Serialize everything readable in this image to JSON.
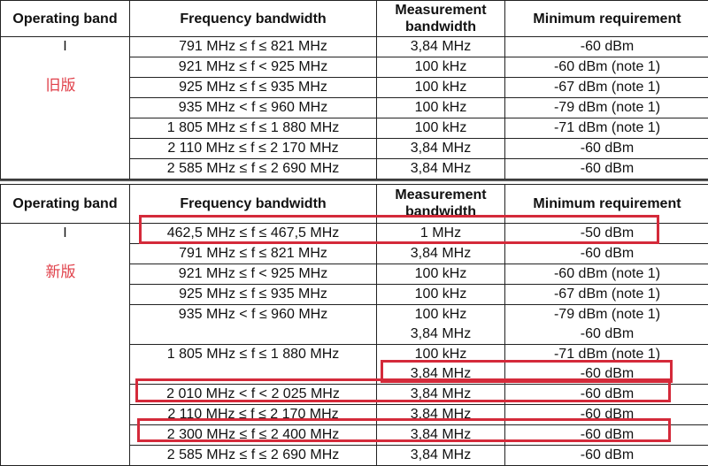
{
  "headers": [
    "Operating band",
    "Frequency bandwidth",
    "Measurement bandwidth",
    "Minimum requirement"
  ],
  "highlight_color": "#d42a3a",
  "old_table": {
    "band": "I",
    "label": "旧版",
    "rows": [
      {
        "freq": "791 MHz ≤ f ≤ 821 MHz",
        "mbw": [
          "3,84 MHz"
        ],
        "req": [
          "-60 dBm"
        ]
      },
      {
        "freq": "921 MHz ≤ f < 925 MHz",
        "mbw": [
          "100 kHz"
        ],
        "req": [
          "-60 dBm (note 1)"
        ]
      },
      {
        "freq": "925 MHz ≤ f ≤ 935 MHz",
        "mbw": [
          "100 kHz"
        ],
        "req": [
          "-67 dBm (note 1)"
        ]
      },
      {
        "freq": "935 MHz < f ≤ 960 MHz",
        "mbw": [
          "100 kHz"
        ],
        "req": [
          "-79 dBm (note 1)"
        ]
      },
      {
        "freq": "1 805 MHz ≤ f ≤ 1 880 MHz",
        "mbw": [
          "100 kHz"
        ],
        "req": [
          "-71 dBm (note 1)"
        ]
      },
      {
        "freq": "2 110 MHz ≤ f ≤ 2 170 MHz",
        "mbw": [
          "3,84 MHz"
        ],
        "req": [
          "-60 dBm"
        ]
      },
      {
        "freq": "2 585 MHz ≤ f ≤ 2 690 MHz",
        "mbw": [
          "3,84 MHz"
        ],
        "req": [
          "-60 dBm"
        ]
      }
    ]
  },
  "new_table": {
    "band": "I",
    "label": "新版",
    "rows": [
      {
        "freq": "462,5 MHz ≤ f ≤ 467,5 MHz",
        "mbw": [
          "1 MHz"
        ],
        "req": [
          "-50 dBm"
        ]
      },
      {
        "freq": "791 MHz ≤ f ≤ 821 MHz",
        "mbw": [
          "3,84 MHz"
        ],
        "req": [
          "-60 dBm"
        ]
      },
      {
        "freq": "921 MHz ≤ f < 925 MHz",
        "mbw": [
          "100 kHz"
        ],
        "req": [
          "-60 dBm (note 1)"
        ]
      },
      {
        "freq": "925 MHz ≤ f ≤ 935 MHz",
        "mbw": [
          "100 kHz"
        ],
        "req": [
          "-67 dBm (note 1)"
        ]
      },
      {
        "freq": "935 MHz < f ≤ 960 MHz",
        "mbw": [
          "100 kHz",
          "3,84 MHz"
        ],
        "req": [
          "-79 dBm (note 1)",
          "-60 dBm"
        ]
      },
      {
        "freq": "1 805 MHz ≤ f ≤ 1 880 MHz",
        "mbw": [
          "100 kHz",
          "3,84 MHz"
        ],
        "req": [
          "-71 dBm (note 1)",
          "-60 dBm"
        ]
      },
      {
        "freq": "2 010 MHz < f < 2 025 MHz",
        "mbw": [
          "3,84 MHz"
        ],
        "req": [
          "-60 dBm"
        ]
      },
      {
        "freq": "2 110 MHz ≤ f ≤ 2 170 MHz",
        "mbw": [
          "3,84 MHz"
        ],
        "req": [
          "-60 dBm"
        ]
      },
      {
        "freq": "2 300 MHz ≤ f ≤ 2 400 MHz",
        "mbw": [
          "3,84 MHz"
        ],
        "req": [
          "-60 dBm"
        ]
      },
      {
        "freq": "2 585 MHz ≤ f ≤ 2 690 MHz",
        "mbw": [
          "3,84 MHz"
        ],
        "req": [
          "-60 dBm"
        ]
      }
    ]
  }
}
